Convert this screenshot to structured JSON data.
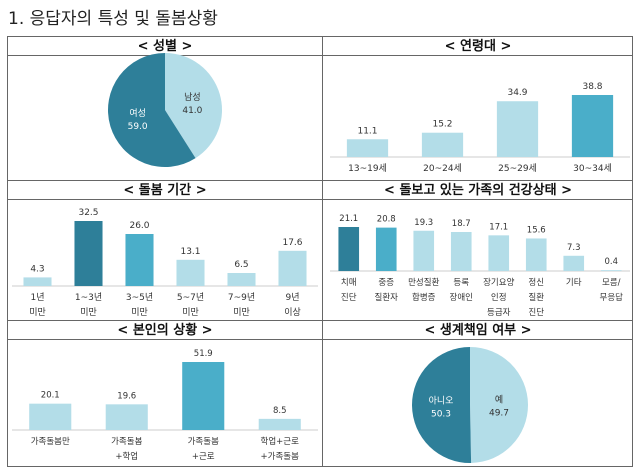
{
  "title": "1. 응답자의 특성 및 돌봄상황",
  "colors": {
    "dark": "#2e7f99",
    "medium": "#4aaec9",
    "light": "#b3dde8"
  },
  "chart_data": [
    {
      "id": "gender",
      "type": "pie",
      "title": "< 성별 >",
      "slices": [
        {
          "label": "남성",
          "value": 41.0,
          "color": "light"
        },
        {
          "label": "여성",
          "value": 59.0,
          "color": "dark"
        }
      ]
    },
    {
      "id": "age",
      "type": "bar",
      "title": "< 연령대 >",
      "categories": [
        [
          "13~19세"
        ],
        [
          "20~24세"
        ],
        [
          "25~29세"
        ],
        [
          "30~34세"
        ]
      ],
      "values": [
        11.1,
        15.2,
        34.9,
        38.8
      ],
      "colors": [
        "light",
        "light",
        "light",
        "medium"
      ]
    },
    {
      "id": "duration",
      "type": "bar",
      "title": "< 돌봄 기간 >",
      "categories": [
        [
          "1년",
          "미만"
        ],
        [
          "1~3년",
          "미만"
        ],
        [
          "3~5년",
          "미만"
        ],
        [
          "5~7년",
          "미만"
        ],
        [
          "7~9년",
          "미만"
        ],
        [
          "9년",
          "이상"
        ]
      ],
      "values": [
        4.3,
        32.5,
        26.0,
        13.1,
        6.5,
        17.6
      ],
      "colors": [
        "light",
        "dark",
        "medium",
        "light",
        "light",
        "light"
      ]
    },
    {
      "id": "health",
      "type": "bar",
      "title": "< 돌보고 있는 가족의 건강상태 >",
      "categories": [
        [
          "치매",
          "진단"
        ],
        [
          "중증",
          "질환자"
        ],
        [
          "만성질환",
          "합병증"
        ],
        [
          "등록",
          "장애인"
        ],
        [
          "장기요양",
          "인정",
          "등급자"
        ],
        [
          "정신",
          "질환",
          "진단"
        ],
        [
          "기타"
        ],
        [
          "모름/",
          "무응답"
        ]
      ],
      "values": [
        21.1,
        20.8,
        19.3,
        18.7,
        17.1,
        15.6,
        7.3,
        0.4
      ],
      "colors": [
        "dark",
        "medium",
        "light",
        "light",
        "light",
        "light",
        "light",
        "light"
      ]
    },
    {
      "id": "status",
      "type": "bar",
      "title": "< 본인의 상황 >",
      "categories": [
        [
          "가족돌봄만"
        ],
        [
          "가족돌봄",
          "+학업"
        ],
        [
          "가족돌봄",
          "+근로"
        ],
        [
          "학업+근로",
          "+가족돌봄"
        ]
      ],
      "values": [
        20.1,
        19.6,
        51.9,
        8.5
      ],
      "colors": [
        "light",
        "light",
        "medium",
        "light"
      ]
    },
    {
      "id": "livelihood",
      "type": "pie",
      "title": "< 생계책임 여부 >",
      "slices": [
        {
          "label": "예",
          "value": 49.7,
          "color": "light"
        },
        {
          "label": "아니오",
          "value": 50.3,
          "color": "dark"
        }
      ]
    }
  ]
}
